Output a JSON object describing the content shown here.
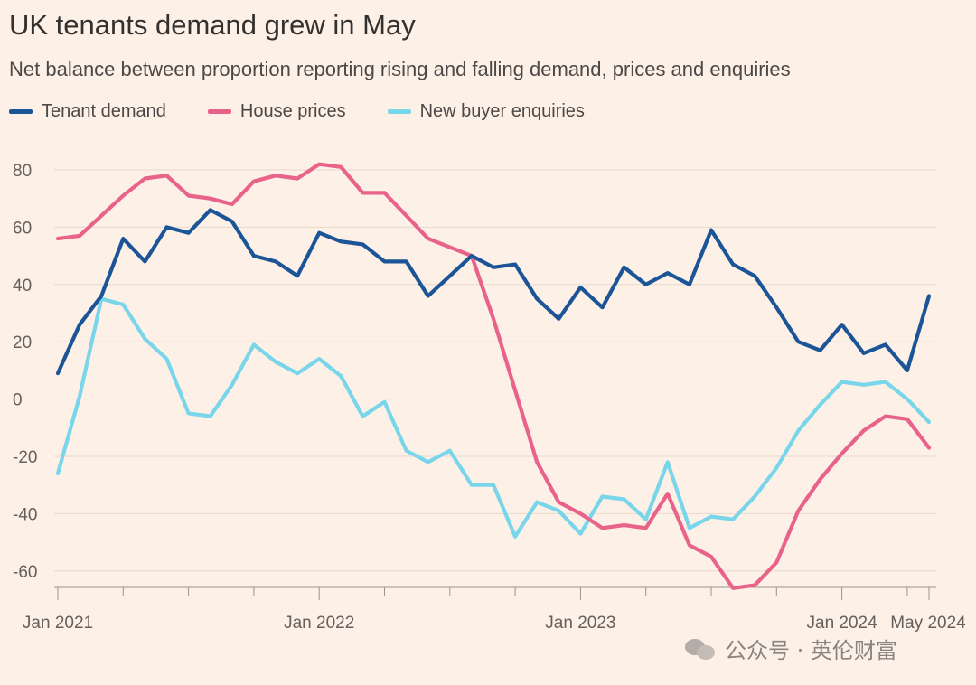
{
  "title": "UK tenants demand grew in May",
  "subtitle": "Net balance between proportion reporting rising and falling demand, prices and enquiries",
  "watermark": "公众号 · 英伦财富",
  "colors": {
    "tenant": "#1b5597",
    "house": "#e8628a",
    "enquiries": "#79d6ea",
    "grid": "#e6d9ce",
    "axis": "#66605c"
  },
  "chart_data": {
    "type": "line",
    "title": "UK tenants demand grew in May",
    "subtitle": "Net balance between proportion reporting rising and falling demand, prices and enquiries",
    "xlabel": "",
    "ylabel": "",
    "ylim": [
      -66,
      82
    ],
    "yticks": [
      80,
      60,
      40,
      20,
      0,
      -20,
      -40,
      -60
    ],
    "ytick_labels": [
      "80",
      "60",
      "40",
      "20",
      "0",
      "-20",
      "-40",
      "-60"
    ],
    "x_start": "2021-01",
    "x_end": "2024-05",
    "xtick_labels": [
      "Jan 2021",
      "Jan 2022",
      "Jan 2023",
      "Jan 2024",
      "May 2024"
    ],
    "x_categories": [
      "2021-01",
      "2021-02",
      "2021-03",
      "2021-04",
      "2021-05",
      "2021-06",
      "2021-07",
      "2021-08",
      "2021-09",
      "2021-10",
      "2021-11",
      "2021-12",
      "2022-01",
      "2022-02",
      "2022-03",
      "2022-04",
      "2022-05",
      "2022-06",
      "2022-07",
      "2022-08",
      "2022-09",
      "2022-10",
      "2022-11",
      "2022-12",
      "2023-01",
      "2023-02",
      "2023-03",
      "2023-04",
      "2023-05",
      "2023-06",
      "2023-07",
      "2023-08",
      "2023-09",
      "2023-10",
      "2023-11",
      "2023-12",
      "2024-01",
      "2024-02",
      "2024-03",
      "2024-04",
      "2024-05"
    ],
    "grid": true,
    "legend_position": "top-left",
    "series": [
      {
        "name": "Tenant demand",
        "color": "#1b5597",
        "values": [
          9,
          26,
          36,
          56,
          48,
          60,
          58,
          66,
          62,
          50,
          48,
          43,
          58,
          55,
          54,
          48,
          48,
          36,
          43,
          50,
          46,
          47,
          35,
          28,
          39,
          32,
          46,
          40,
          44,
          40,
          59,
          47,
          43,
          32,
          20,
          17,
          26,
          16,
          19,
          10,
          36
        ]
      },
      {
        "name": "House prices",
        "color": "#e8628a",
        "values": [
          56,
          57,
          64,
          71,
          77,
          78,
          71,
          70,
          68,
          76,
          78,
          77,
          82,
          81,
          72,
          72,
          64,
          56,
          53,
          50,
          28,
          3,
          -22,
          -36,
          -40,
          -45,
          -44,
          -45,
          -33,
          -51,
          -55,
          -66,
          -65,
          -57,
          -39,
          -28,
          -19,
          -11,
          -6,
          -7,
          -17
        ]
      },
      {
        "name": "New buyer enquiries",
        "color": "#79d6ea",
        "values": [
          -26,
          1,
          35,
          33,
          21,
          14,
          -5,
          -6,
          5,
          19,
          13,
          9,
          14,
          8,
          -6,
          -1,
          -18,
          -22,
          -18,
          -30,
          -30,
          -48,
          -36,
          -39,
          -47,
          -34,
          -35,
          -42,
          -22,
          -45,
          -41,
          -42,
          -34,
          -24,
          -11,
          -2,
          6,
          5,
          6,
          0,
          -8
        ]
      }
    ]
  }
}
